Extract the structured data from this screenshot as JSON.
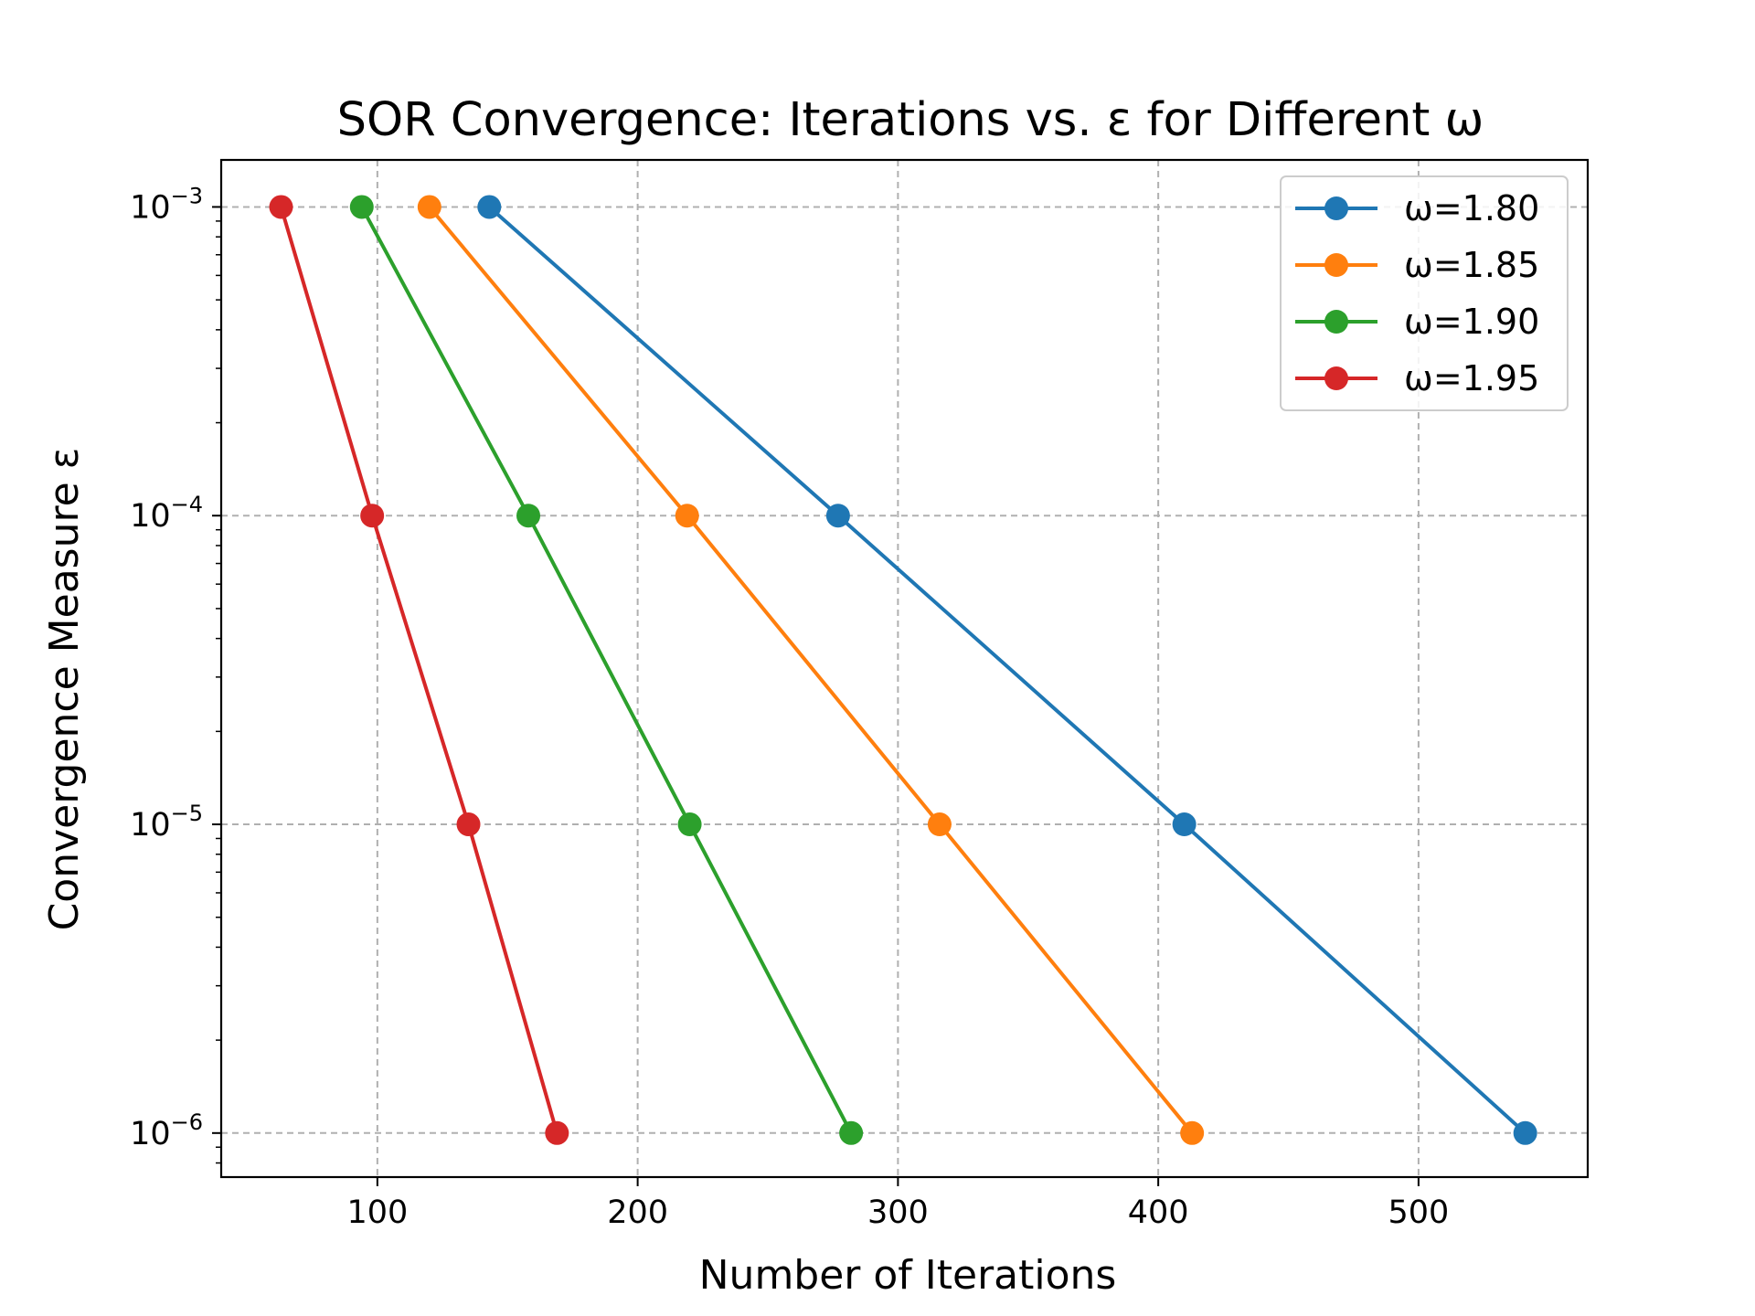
{
  "chart_data": {
    "type": "line",
    "title": "SOR Convergence: Iterations vs. ε for Different ω",
    "xlabel": "Number of Iterations",
    "ylabel": "Convergence Measure ε",
    "xscale": "linear",
    "yscale": "log",
    "xlim": [
      40,
      565
    ],
    "ylim": [
      7.2e-07,
      0.00142
    ],
    "xticks": [
      100,
      200,
      300,
      400,
      500
    ],
    "xtick_labels": [
      "100",
      "200",
      "300",
      "400",
      "500"
    ],
    "yticks": [
      1e-06,
      1e-05,
      0.0001,
      0.001
    ],
    "ytick_labels": [
      {
        "base": "10",
        "exp": "−6"
      },
      {
        "base": "10",
        "exp": "−5"
      },
      {
        "base": "10",
        "exp": "−4"
      },
      {
        "base": "10",
        "exp": "−3"
      }
    ],
    "grid": true,
    "legend": "top-right",
    "series": [
      {
        "name": "ω=1.80",
        "color": "#1f77b4",
        "x": [
          143,
          277,
          410,
          541
        ],
        "y": [
          0.001,
          0.0001,
          1e-05,
          1e-06
        ]
      },
      {
        "name": "ω=1.85",
        "color": "#ff7f0e",
        "x": [
          120,
          219,
          316,
          413
        ],
        "y": [
          0.001,
          0.0001,
          1e-05,
          1e-06
        ]
      },
      {
        "name": "ω=1.90",
        "color": "#2ca02c",
        "x": [
          94,
          158,
          220,
          282
        ],
        "y": [
          0.001,
          0.0001,
          1e-05,
          1e-06
        ]
      },
      {
        "name": "ω=1.95",
        "color": "#d62728",
        "x": [
          63,
          98,
          135,
          169
        ],
        "y": [
          0.001,
          0.0001,
          1e-05,
          1e-06
        ]
      }
    ]
  }
}
